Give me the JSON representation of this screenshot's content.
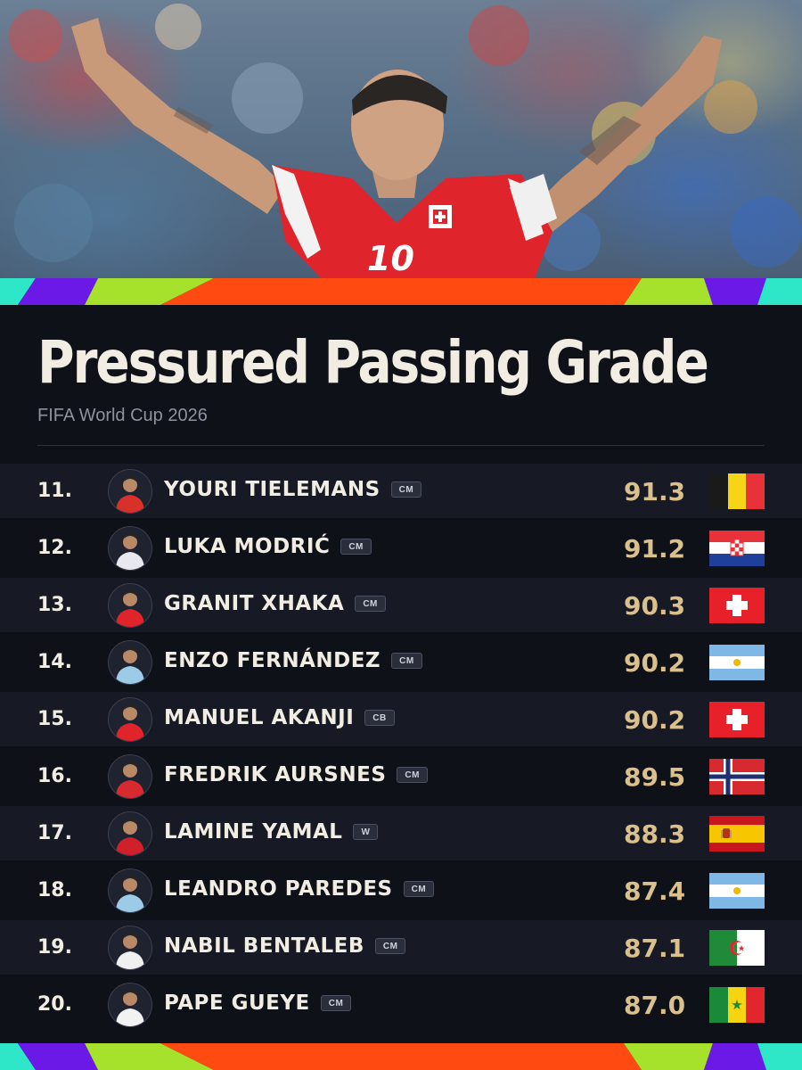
{
  "header": {
    "title": "Pressured Passing Grade",
    "subtitle": "FIFA World Cup 2026"
  },
  "hero": {
    "jersey_number": "10"
  },
  "colors": {
    "background": "#0f1118",
    "row_alt": "#171a24",
    "grade": "#d9c08c",
    "text": "#f2ede3",
    "band_orange": "#ff4a12",
    "band_lime": "#a6e22b",
    "band_purple": "#6a19e6",
    "band_teal": "#2ee6c8"
  },
  "players": [
    {
      "rank": "11.",
      "name": "YOURI TIELEMANS",
      "position": "CM",
      "grade": "91.3",
      "flag": "belgium-flag",
      "kit": "#d8312a"
    },
    {
      "rank": "12.",
      "name": "LUKA MODRIĆ",
      "position": "CM",
      "grade": "91.2",
      "flag": "croatia-flag",
      "kit": "#e8e8ee"
    },
    {
      "rank": "13.",
      "name": "GRANIT XHAKA",
      "position": "CM",
      "grade": "90.3",
      "flag": "switzerland-flag",
      "kit": "#e0242c"
    },
    {
      "rank": "14.",
      "name": "ENZO FERNÁNDEZ",
      "position": "CM",
      "grade": "90.2",
      "flag": "argentina-flag",
      "kit": "#9ccbe8"
    },
    {
      "rank": "15.",
      "name": "MANUEL AKANJI",
      "position": "CB",
      "grade": "90.2",
      "flag": "switzerland-flag",
      "kit": "#e0242c"
    },
    {
      "rank": "16.",
      "name": "FREDRIK AURSNES",
      "position": "CM",
      "grade": "89.5",
      "flag": "norway-flag",
      "kit": "#d62a30"
    },
    {
      "rank": "17.",
      "name": "LAMINE YAMAL",
      "position": "W",
      "grade": "88.3",
      "flag": "spain-flag",
      "kit": "#d0202a"
    },
    {
      "rank": "18.",
      "name": "LEANDRO PAREDES",
      "position": "CM",
      "grade": "87.4",
      "flag": "argentina-flag",
      "kit": "#9ccbe8"
    },
    {
      "rank": "19.",
      "name": "NABIL BENTALEB",
      "position": "CM",
      "grade": "87.1",
      "flag": "algeria-flag",
      "kit": "#f0f0f0"
    },
    {
      "rank": "20.",
      "name": "PAPE GUEYE",
      "position": "CM",
      "grade": "87.0",
      "flag": "senegal-flag",
      "kit": "#f2f2f2"
    }
  ]
}
